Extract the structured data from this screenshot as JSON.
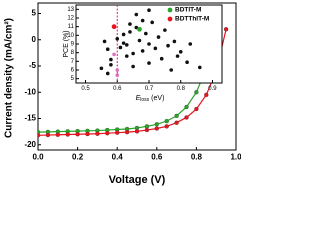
{
  "chart_data": [
    {
      "type": "line",
      "xlabel": "Voltage (V)",
      "ylabel": "Current density (mA/cm²)",
      "xlim": [
        0,
        1.0
      ],
      "ylim": [
        -21,
        7
      ],
      "xticks": [
        {
          "value": 0,
          "label": "0.0"
        },
        0.2,
        0.4,
        0.6,
        0.8,
        {
          "value": 1,
          "label": "1.0"
        }
      ],
      "yticks": [
        -20,
        -15,
        -10,
        -5,
        0,
        5
      ],
      "series": [
        {
          "name": "BDTIT-M",
          "color": "#2aa52a",
          "x": [
            0,
            0.05,
            0.1,
            0.15,
            0.2,
            0.25,
            0.3,
            0.35,
            0.4,
            0.45,
            0.5,
            0.55,
            0.6,
            0.65,
            0.7,
            0.75,
            0.8,
            0.85,
            0.9
          ],
          "values": [
            -17.6,
            -17.55,
            -17.5,
            -17.45,
            -17.4,
            -17.35,
            -17.3,
            -17.2,
            -17.1,
            -17.0,
            -16.8,
            -16.5,
            -16.1,
            -15.5,
            -14.5,
            -12.8,
            -10.0,
            -5.5,
            1.0
          ]
        },
        {
          "name": "BDTThIT-M",
          "color": "#e8141e",
          "x": [
            0,
            0.05,
            0.1,
            0.15,
            0.2,
            0.25,
            0.3,
            0.35,
            0.4,
            0.45,
            0.5,
            0.55,
            0.6,
            0.65,
            0.7,
            0.75,
            0.8,
            0.85,
            0.9,
            0.95
          ],
          "values": [
            -18.2,
            -18.15,
            -18.1,
            -18.05,
            -18.0,
            -17.95,
            -17.9,
            -17.8,
            -17.7,
            -17.6,
            -17.45,
            -17.2,
            -16.9,
            -16.5,
            -15.8,
            -14.8,
            -13.2,
            -10.5,
            -6.0,
            2.0
          ]
        }
      ]
    },
    {
      "type": "scatter",
      "xlabel": [
        "E",
        "loss",
        "(eV)"
      ],
      "ylabel": "PCE (%)",
      "xlim": [
        0.47,
        0.93
      ],
      "ylim": [
        4.5,
        13.5
      ],
      "xticks": [
        0.5,
        0.6,
        0.7,
        0.8,
        0.9
      ],
      "yticks": [
        5,
        6,
        7,
        8,
        9,
        10,
        11,
        12,
        13
      ],
      "vline": 0.6,
      "vline_color": "#e0148c",
      "series": [
        {
          "color": "#111111",
          "x": [
            0.55,
            0.56,
            0.57,
            0.58,
            0.58,
            0.6,
            0.61,
            0.62,
            0.62,
            0.63,
            0.63,
            0.64,
            0.64,
            0.65,
            0.65,
            0.66,
            0.67,
            0.68,
            0.68,
            0.69,
            0.7,
            0.7,
            0.71,
            0.72,
            0.73,
            0.74,
            0.75,
            0.76,
            0.77,
            0.78,
            0.79,
            0.8,
            0.82,
            0.83,
            0.86,
            0.66,
            0.7,
            0.57
          ],
          "values": [
            6.2,
            9.3,
            8.4,
            7.2,
            6.6,
            9.6,
            8.6,
            9.1,
            10.1,
            7.6,
            8.9,
            11.3,
            10.4,
            6.4,
            7.9,
            10.9,
            9.4,
            8.2,
            11.7,
            10.2,
            9.0,
            6.8,
            11.5,
            8.5,
            9.8,
            7.3,
            10.6,
            8.8,
            6.0,
            9.3,
            7.6,
            8.1,
            6.9,
            9.0,
            6.3,
            12.4,
            12.9,
            5.6
          ]
        },
        {
          "color": "#e070c0",
          "x": [
            0.6,
            0.6,
            0.59
          ],
          "values": [
            6.0,
            5.4,
            7.8
          ]
        },
        {
          "name": "BDTIT-M",
          "color": "#2aa52a",
          "x": [
            0.67
          ],
          "values": [
            10.7
          ]
        },
        {
          "name": "BDTThIT-M",
          "color": "#e8141e",
          "x": [
            0.59
          ],
          "values": [
            11.0
          ]
        }
      ]
    }
  ]
}
